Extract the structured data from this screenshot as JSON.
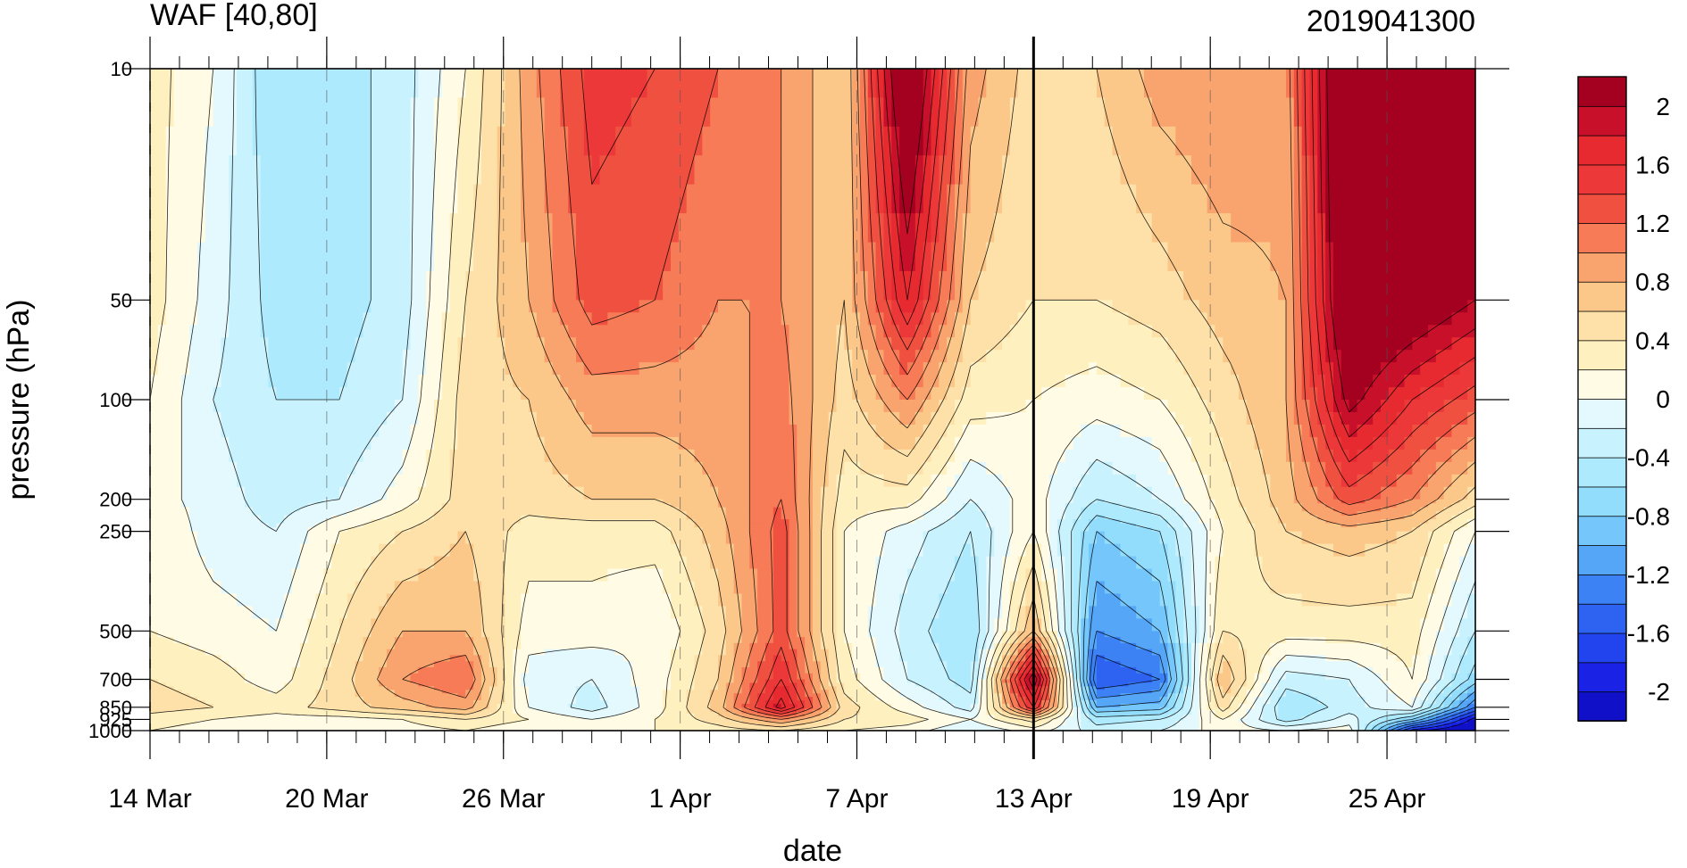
{
  "chart_data": {
    "type": "heatmap",
    "title": "WAF [40,80]",
    "subtitle": "2019041300",
    "xlabel": "date",
    "ylabel": "pressure (hPa)",
    "x_tick_labels": [
      "14 Mar",
      "20 Mar",
      "26 Mar",
      "1 Apr",
      "7 Apr",
      "13 Apr",
      "19 Apr",
      "25 Apr"
    ],
    "y_ticks": [
      {
        "value": 10,
        "label": "10"
      },
      {
        "value": 50,
        "label": "50"
      },
      {
        "value": 100,
        "label": "100"
      },
      {
        "value": 200,
        "label": "200"
      },
      {
        "value": 250,
        "label": "250"
      },
      {
        "value": 500,
        "label": "500"
      },
      {
        "value": 700,
        "label": "700"
      },
      {
        "value": 850,
        "label": "850"
      },
      {
        "value": 925,
        "label": "925"
      },
      {
        "value": 1000,
        "label": "1000"
      }
    ],
    "y_scale": "log",
    "y_inverted": true,
    "xlim": [
      "2019-03-14",
      "2019-04-28"
    ],
    "ylim": [
      10,
      1000
    ],
    "vertical_line_at": "13 Apr",
    "colorbar": {
      "levels": [
        -2.2,
        -2,
        -1.8,
        -1.6,
        -1.4,
        -1.2,
        -1,
        -0.8,
        -0.6,
        -0.4,
        -0.2,
        0,
        0.2,
        0.4,
        0.6,
        0.8,
        1,
        1.2,
        1.4,
        1.6,
        1.8,
        2,
        2.2
      ],
      "labels": [
        "2",
        "1.6",
        "1.2",
        "0.8",
        "0.4",
        "0",
        "-0.4",
        "-0.8",
        "-1.2",
        "-1.6",
        "-2"
      ],
      "colors": [
        "#1010c8",
        "#1a22e6",
        "#2244ee",
        "#2e62f0",
        "#3c82f4",
        "#56a6f8",
        "#74c6fb",
        "#92dcfc",
        "#aeeafd",
        "#c8f2fd",
        "#e4f9fd",
        "#fffbe4",
        "#fff0c0",
        "#fde1a8",
        "#fbc88a",
        "#f9a46e",
        "#f67b56",
        "#f05040",
        "#ec3838",
        "#e62a30",
        "#c8102a",
        "#a40020"
      ]
    },
    "contour_values": [
      [
        0.3,
        0.3,
        0.2,
        0.1,
        0.2,
        0.2,
        0.4,
        0.5,
        0.3,
        0.2
      ],
      [
        0.0,
        -0.1,
        -0.2,
        -0.1,
        -0.1,
        0.1,
        0.3,
        0.4,
        0.2,
        0.1
      ],
      [
        -0.6,
        -0.5,
        -0.4,
        -0.3,
        -0.2,
        0.0,
        0.1,
        0.3,
        0.1,
        0.0
      ],
      [
        -0.5,
        -0.5,
        -0.4,
        -0.2,
        0.2,
        0.4,
        0.5,
        0.5,
        0.1,
        0.0
      ],
      [
        -0.3,
        -0.3,
        -0.2,
        0.1,
        0.4,
        0.8,
        1.0,
        0.7,
        0.2,
        0.1
      ],
      [
        0.2,
        0.4,
        0.5,
        0.5,
        0.6,
        0.8,
        1.2,
        0.9,
        0.4,
        0.2
      ],
      [
        0.9,
        0.8,
        0.6,
        0.5,
        0.3,
        0.1,
        -0.1,
        0.0,
        0.2,
        0.0
      ],
      [
        1.5,
        1.3,
        0.9,
        0.6,
        0.3,
        0.1,
        -0.2,
        -0.3,
        0.0,
        0.1
      ],
      [
        1.4,
        1.2,
        0.9,
        0.6,
        0.3,
        0.0,
        0.1,
        0.1,
        0.2,
        0.2
      ],
      [
        1.2,
        1.0,
        0.9,
        0.8,
        0.7,
        0.5,
        0.6,
        0.7,
        0.5,
        0.3
      ],
      [
        1.0,
        1.0,
        1.1,
        1.2,
        1.3,
        1.3,
        1.6,
        1.9,
        1.0,
        0.4
      ],
      [
        0.6,
        0.6,
        0.5,
        0.3,
        0.2,
        0.2,
        0.3,
        0.5,
        0.4,
        0.2
      ],
      [
        2.5,
        1.8,
        1.0,
        0.3,
        -0.1,
        -0.3,
        -0.2,
        0.1,
        0.3,
        0.1
      ],
      [
        0.9,
        0.6,
        0.3,
        -0.2,
        -0.4,
        -0.6,
        -0.5,
        -0.3,
        0.0,
        -0.2
      ],
      [
        0.5,
        0.4,
        0.2,
        0.1,
        0.2,
        0.8,
        2.2,
        1.6,
        0.5,
        0.1
      ],
      [
        0.6,
        0.4,
        0.1,
        -0.4,
        -0.8,
        -1.2,
        -1.6,
        -1.0,
        -0.5,
        -0.3
      ],
      [
        0.9,
        0.5,
        0.2,
        -0.2,
        -0.6,
        -1.0,
        -1.4,
        -0.9,
        -0.4,
        -0.2
      ],
      [
        1.0,
        0.7,
        0.5,
        0.3,
        0.2,
        0.4,
        0.8,
        0.5,
        0.2,
        0.1
      ],
      [
        0.9,
        0.8,
        0.8,
        0.7,
        0.6,
        0.3,
        -0.3,
        -0.6,
        -0.5,
        0.0
      ],
      [
        2.6,
        2.5,
        2.1,
        1.3,
        0.7,
        0.3,
        -0.2,
        -0.3,
        -0.1,
        0.1
      ],
      [
        2.6,
        2.3,
        1.6,
        1.0,
        0.6,
        0.3,
        0.2,
        0.0,
        -0.8,
        -1.9
      ],
      [
        2.4,
        2.0,
        1.3,
        0.5,
        0.0,
        -0.4,
        -0.7,
        -1.4,
        -2.1,
        -2.4
      ]
    ]
  }
}
